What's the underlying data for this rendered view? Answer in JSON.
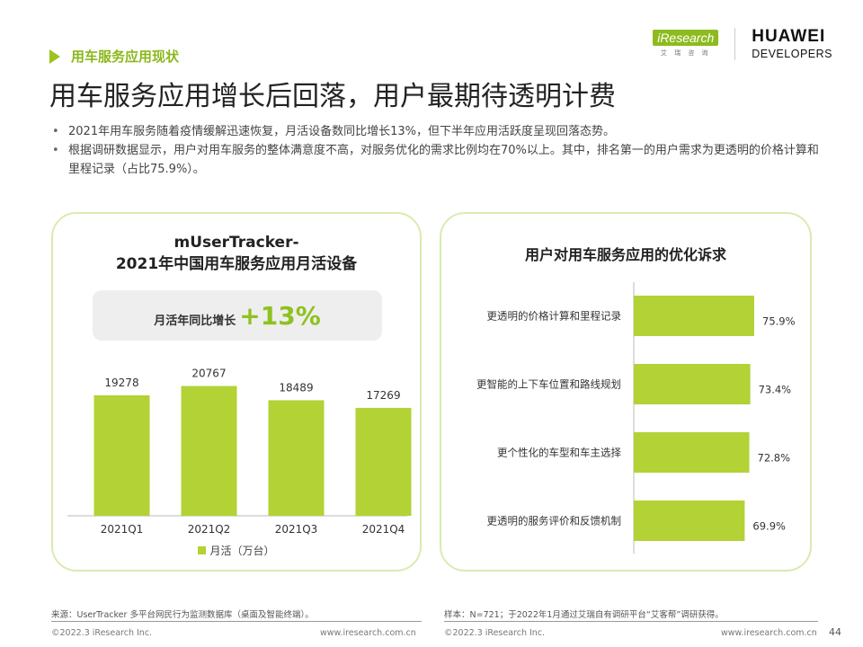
{
  "header": {
    "section_label": "用车服务应用现状",
    "logo_iresearch": "iResearch",
    "logo_iresearch_sub": "艾 瑞 咨 询",
    "logo_huawei": "HUAWEI",
    "logo_huawei_sub": "DEVELOPERS"
  },
  "title": "用车服务应用增长后回落，用户最期待透明计费",
  "bullets": [
    "2021年用车服务随着疫情缓解迅速恢复，月活设备数同比增长13%，但下半年应用活跃度呈现回落态势。",
    "根据调研数据显示，用户对用车服务的整体满意度不高，对服务优化的需求比例均在70%以上。其中，排名第一的用户需求为更透明的价格计算和里程记录（占比75.9%）。"
  ],
  "left_card": {
    "title_line1": "mUserTracker-",
    "title_line2": "2021年中国用车服务应用月活设备",
    "growth_label": "月活年同比增长",
    "growth_value": "+13%",
    "legend": "月活（万台）"
  },
  "right_card": {
    "title": "用户对用车服务应用的优化诉求"
  },
  "chart_data": [
    {
      "type": "bar",
      "title": "mUserTracker-2021年中国用车服务应用月活设备",
      "categories": [
        "2021Q1",
        "2021Q2",
        "2021Q3",
        "2021Q4"
      ],
      "series": [
        {
          "name": "月活（万台）",
          "values": [
            19278,
            20767,
            18489,
            17269
          ]
        }
      ],
      "ylim": [
        0,
        22000
      ],
      "grid": false,
      "legend_position": "bottom",
      "color": "#b2d235"
    },
    {
      "type": "bar",
      "orientation": "horizontal",
      "title": "用户对用车服务应用的优化诉求",
      "categories": [
        "更透明的价格计算和里程记录",
        "更智能的上下车位置和路线规划",
        "更个性化的车型和车主选择",
        "更透明的服务评价和反馈机制"
      ],
      "values": [
        75.9,
        73.4,
        72.8,
        69.9
      ],
      "value_labels": [
        "75.9%",
        "73.4%",
        "72.8%",
        "69.9%"
      ],
      "color": "#b2d235"
    }
  ],
  "footer": {
    "source_left": "来源：UserTracker 多平台网民行为监测数据库（桌面及智能终端）。",
    "source_right": "样本：N=721；于2022年1月通过艾瑞自有调研平台“艾客帮”调研获得。",
    "copyright_left": "©2022.3 iResearch Inc.",
    "url_left": "www.iresearch.com.cn",
    "copyright_right": "©2022.3 iResearch Inc.",
    "url_right": "www.iresearch.com.cn",
    "page": "44"
  }
}
